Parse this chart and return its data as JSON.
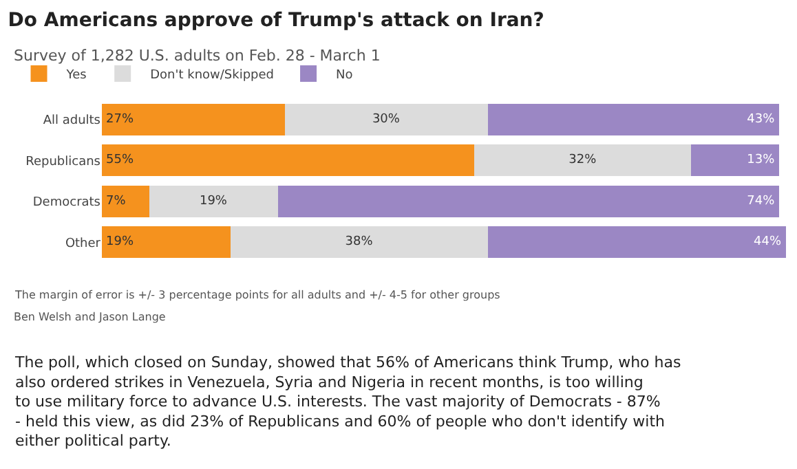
{
  "chart_data": {
    "type": "bar",
    "orientation": "horizontal",
    "stacked": true,
    "legend": "top left",
    "title": "Do Americans approve of Trump's attack on Iran?",
    "subtitle": "Survey of 1,282 U.S. adults on Feb. 28 - March 1",
    "categories": [
      "All adults",
      "Republicans",
      "Democrats",
      "Other"
    ],
    "series": [
      {
        "name": "Yes",
        "color": "#f5921e",
        "values": [
          27,
          55,
          7,
          19
        ],
        "value_labels": [
          "27%",
          "55%",
          "7%",
          "19%"
        ]
      },
      {
        "name": "Don't know/Skipped",
        "color": "#dcdcdc",
        "values": [
          30,
          32,
          19,
          38
        ],
        "value_labels": [
          "30%",
          "32%",
          "19%",
          "38%"
        ]
      },
      {
        "name": "No",
        "color": "#9b87c4",
        "values": [
          43,
          13,
          74,
          44
        ],
        "value_labels": [
          "43%",
          "13%",
          "74%",
          "44%"
        ]
      }
    ],
    "annotations": [
      "The margin of error is +/- 3 percentage points for all adults and +/- 4-5 for other groups",
      "Ben Welsh and Jason Lange",
      "The poll, which closed on Sunday, showed that 56% of Americans think Trump, who has also ordered strikes in Venezuela, Syria and Nigeria in recent months, is too willing to use military force to advance U.S. interests. The vast majority of Democrats - 87% - held this view, as did 23% of Republicans and 60% of people who don't identify with either political party."
    ]
  }
}
